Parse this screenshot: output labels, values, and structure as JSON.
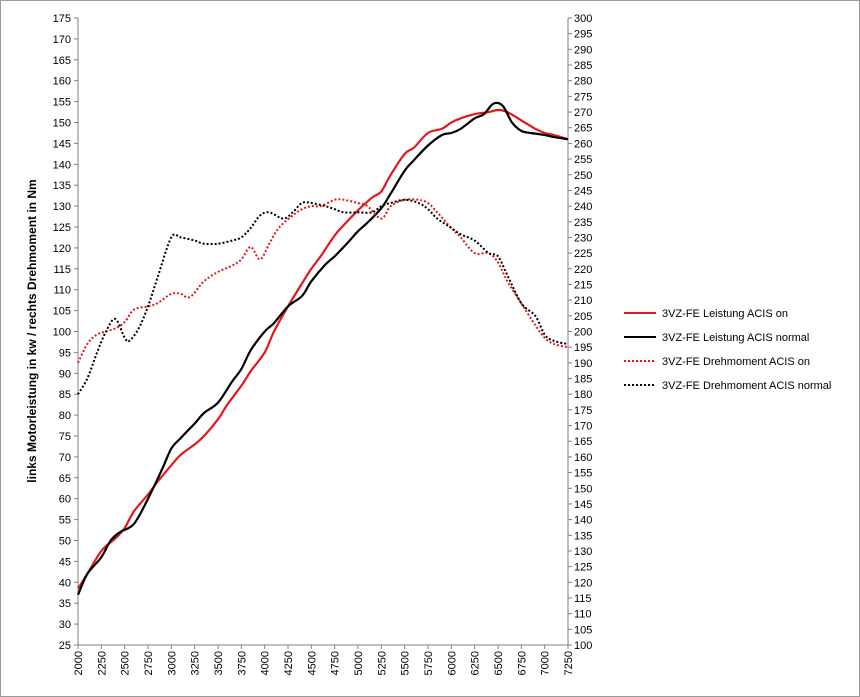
{
  "chart_data": {
    "type": "line",
    "ylabel": "links Motorleistung in kw / rechts Drehmoment in Nm",
    "x_ticks": [
      2000,
      2250,
      2500,
      2750,
      3000,
      3250,
      3500,
      3750,
      4000,
      4250,
      4500,
      4750,
      5000,
      5250,
      5500,
      5750,
      6000,
      6250,
      6500,
      6750,
      7000,
      7250
    ],
    "xlim": [
      2000,
      7250
    ],
    "ylim_left": [
      25,
      175
    ],
    "ylim_right": [
      100,
      300
    ],
    "left_tick_step": 5,
    "right_tick_step": 5,
    "grid": false,
    "legend_position": "right",
    "series": [
      {
        "name": "3VZ-FE Leistung ACIS on",
        "axis": "left",
        "color": "#e3181c",
        "style": "solid",
        "x": [
          2000,
          2100,
          2250,
          2400,
          2500,
          2600,
          2750,
          2850,
          3000,
          3100,
          3250,
          3350,
          3500,
          3600,
          3750,
          3850,
          4000,
          4100,
          4250,
          4400,
          4500,
          4600,
          4750,
          4850,
          5000,
          5150,
          5250,
          5350,
          5500,
          5600,
          5750,
          5900,
          6000,
          6100,
          6250,
          6400,
          6500,
          6600,
          6750,
          6900,
          7000,
          7100,
          7250
        ],
        "y": [
          38.5,
          42,
          47.5,
          50.5,
          53,
          57,
          61,
          64,
          68,
          70.5,
          73,
          75,
          79,
          82.5,
          87,
          90.5,
          95,
          100,
          106,
          111.5,
          115,
          118,
          123,
          125.5,
          129,
          132,
          133.5,
          137.5,
          142.5,
          144,
          147.5,
          148.5,
          150,
          151,
          152,
          152.5,
          153,
          152.5,
          150.5,
          148.5,
          147.5,
          147,
          146
        ]
      },
      {
        "name": "3VZ-FE Leistung ACIS normal",
        "axis": "left",
        "color": "#000000",
        "style": "solid",
        "x": [
          2000,
          2100,
          2250,
          2350,
          2450,
          2600,
          2750,
          2900,
          3000,
          3100,
          3250,
          3350,
          3500,
          3650,
          3750,
          3850,
          4000,
          4100,
          4250,
          4400,
          4500,
          4650,
          4750,
          4900,
          5000,
          5100,
          5250,
          5350,
          5500,
          5600,
          5750,
          5900,
          6000,
          6100,
          6250,
          6350,
          6450,
          6550,
          6650,
          6750,
          6850,
          7000,
          7100,
          7250
        ],
        "y": [
          37,
          42,
          46,
          50,
          52,
          54,
          60,
          67,
          72,
          74.5,
          78,
          80.5,
          83,
          88,
          91,
          95.5,
          100,
          102,
          106,
          108.5,
          112,
          116,
          118,
          121.5,
          124,
          126,
          129.5,
          133,
          138.5,
          141,
          144.5,
          147,
          147.5,
          148.5,
          151,
          152,
          154.5,
          154,
          150,
          148,
          147.5,
          147,
          146.5,
          146
        ]
      },
      {
        "name": "3VZ-FE Drehmoment ACIS on",
        "axis": "right",
        "color": "#e3181c",
        "style": "dotted",
        "x": [
          2000,
          2100,
          2200,
          2300,
          2400,
          2500,
          2600,
          2750,
          2850,
          3000,
          3100,
          3200,
          3350,
          3500,
          3650,
          3750,
          3850,
          3950,
          4050,
          4150,
          4300,
          4400,
          4500,
          4600,
          4750,
          4850,
          5000,
          5100,
          5250,
          5350,
          5500,
          5650,
          5750,
          5850,
          6000,
          6100,
          6250,
          6400,
          6500,
          6600,
          6750,
          6900,
          7000,
          7100,
          7250
        ],
        "y": [
          190,
          196,
          199,
          200,
          201,
          203,
          207,
          208,
          209,
          212,
          212,
          211,
          216,
          219,
          221,
          223,
          227,
          223,
          228,
          233,
          237,
          239,
          240,
          240,
          242,
          242,
          241,
          240,
          236,
          240,
          242,
          242,
          241,
          238,
          233,
          230,
          225,
          225,
          222,
          216,
          209,
          202,
          198,
          196,
          195
        ]
      },
      {
        "name": "3VZ-FE Drehmoment ACIS normal",
        "axis": "right",
        "color": "#000000",
        "style": "dotted",
        "x": [
          2000,
          2100,
          2200,
          2300,
          2400,
          2500,
          2550,
          2650,
          2750,
          2850,
          3000,
          3100,
          3250,
          3350,
          3500,
          3650,
          3750,
          3850,
          3950,
          4050,
          4200,
          4300,
          4400,
          4500,
          4650,
          4750,
          4850,
          5000,
          5150,
          5250,
          5350,
          5500,
          5650,
          5750,
          5850,
          6000,
          6100,
          6250,
          6400,
          6500,
          6600,
          6750,
          6900,
          7000,
          7100,
          7250
        ],
        "y": [
          180,
          185,
          193,
          200,
          204,
          198,
          197,
          201,
          208,
          217,
          230,
          230,
          229,
          228,
          228,
          229,
          230,
          233,
          237,
          238,
          236,
          238,
          241,
          241,
          240,
          239,
          238,
          238,
          238,
          240,
          241,
          242,
          241,
          239,
          236,
          233,
          231,
          229,
          225,
          224,
          218,
          209,
          205,
          199,
          197,
          196
        ]
      }
    ]
  }
}
